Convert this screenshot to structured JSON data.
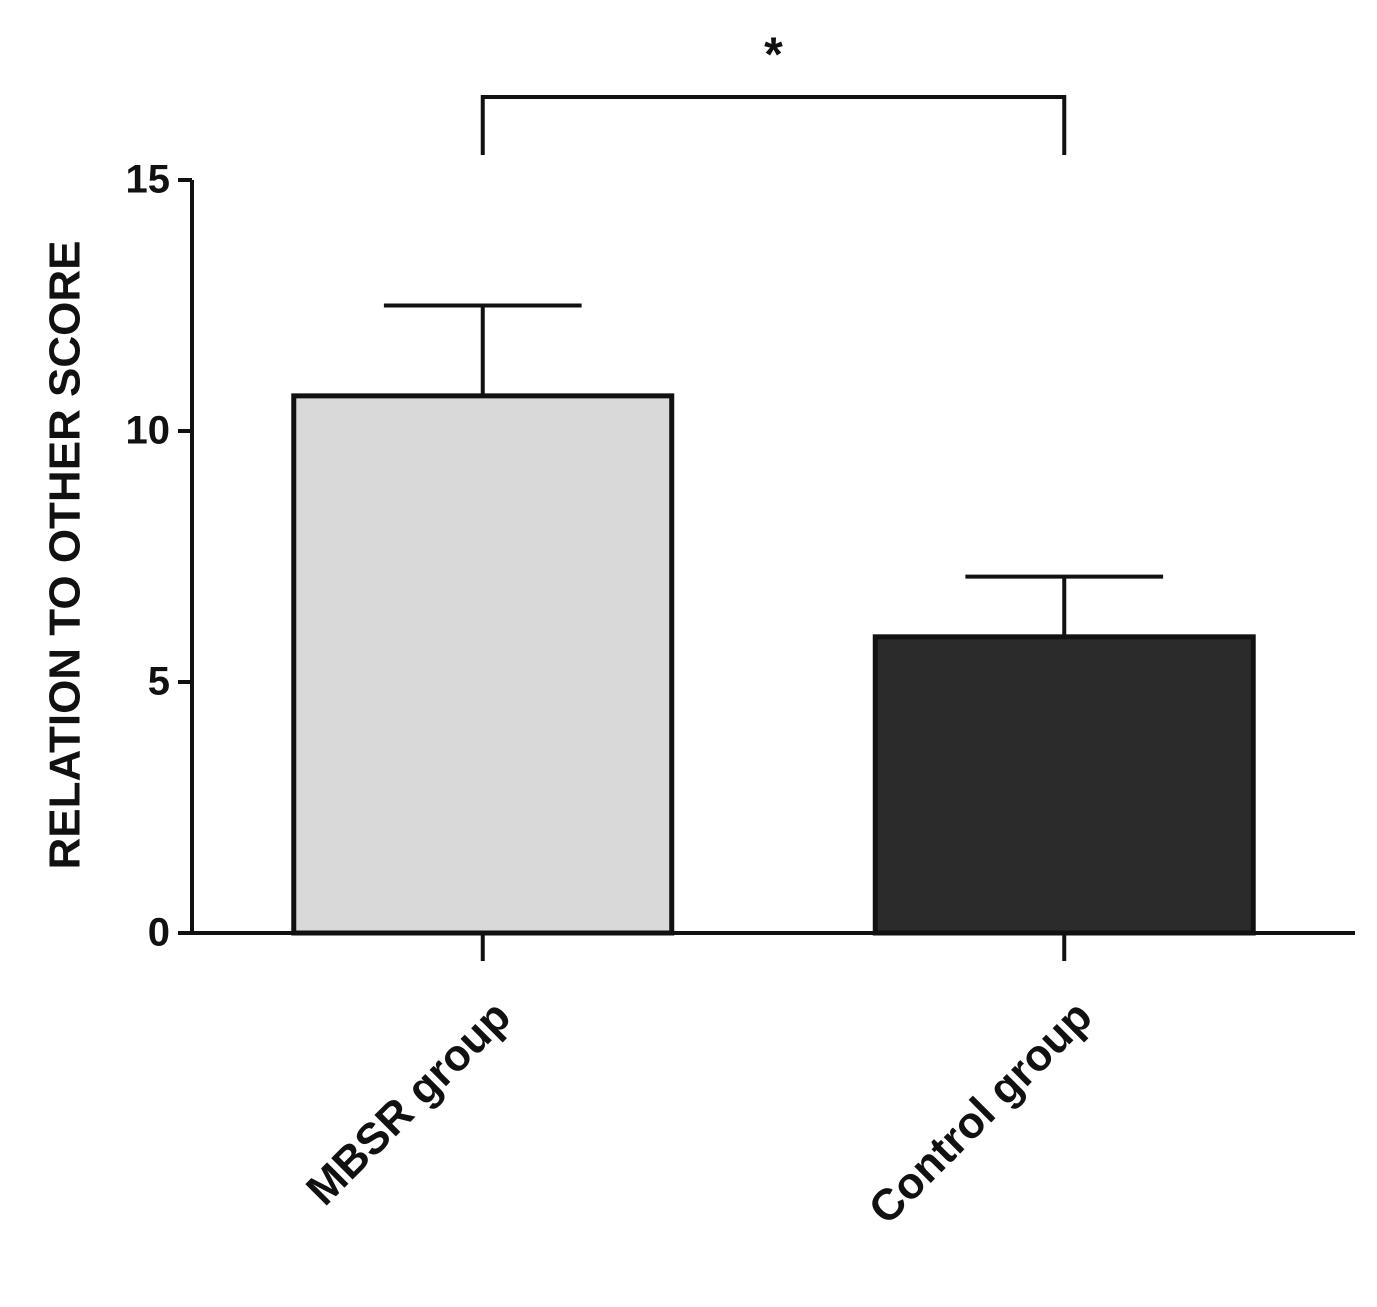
{
  "chart_data": {
    "type": "bar",
    "ylabel": "RELATION TO OTHER SCORE",
    "categories": [
      "MBSR group",
      "Control group"
    ],
    "values": [
      10.7,
      5.9
    ],
    "errors": [
      1.8,
      1.2
    ],
    "colors": [
      "#d9d9d9",
      "#2b2b2b"
    ],
    "ylim": [
      0,
      15
    ],
    "yticks": [
      0,
      5,
      10,
      15
    ],
    "annotation": "*"
  }
}
